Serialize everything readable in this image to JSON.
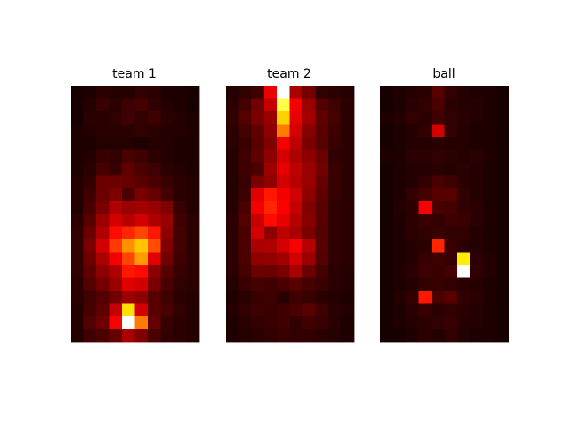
{
  "chart_data": [
    {
      "type": "heatmap",
      "title": "team 1",
      "colormap": "hot",
      "vmin": 0,
      "vmax": 1,
      "rows": 20,
      "cols": 10,
      "values": [
        [
          0.02,
          0.03,
          0.05,
          0.04,
          0.04,
          0.06,
          0.05,
          0.03,
          0.03,
          0.02
        ],
        [
          0.02,
          0.04,
          0.07,
          0.05,
          0.08,
          0.09,
          0.06,
          0.04,
          0.03,
          0.02
        ],
        [
          0.02,
          0.05,
          0.05,
          0.06,
          0.08,
          0.06,
          0.08,
          0.05,
          0.04,
          0.03
        ],
        [
          0.03,
          0.04,
          0.05,
          0.05,
          0.05,
          0.06,
          0.05,
          0.04,
          0.04,
          0.03
        ],
        [
          0.03,
          0.03,
          0.04,
          0.04,
          0.04,
          0.03,
          0.04,
          0.04,
          0.03,
          0.03
        ],
        [
          0.03,
          0.04,
          0.07,
          0.06,
          0.1,
          0.08,
          0.05,
          0.04,
          0.03,
          0.03
        ],
        [
          0.03,
          0.05,
          0.09,
          0.07,
          0.13,
          0.1,
          0.08,
          0.05,
          0.04,
          0.03
        ],
        [
          0.04,
          0.06,
          0.15,
          0.15,
          0.14,
          0.12,
          0.1,
          0.07,
          0.05,
          0.04
        ],
        [
          0.04,
          0.08,
          0.15,
          0.18,
          0.1,
          0.17,
          0.14,
          0.09,
          0.05,
          0.04
        ],
        [
          0.04,
          0.1,
          0.17,
          0.25,
          0.22,
          0.23,
          0.22,
          0.18,
          0.07,
          0.04
        ],
        [
          0.05,
          0.12,
          0.22,
          0.3,
          0.26,
          0.3,
          0.25,
          0.22,
          0.08,
          0.05
        ],
        [
          0.06,
          0.15,
          0.25,
          0.38,
          0.42,
          0.47,
          0.4,
          0.2,
          0.09,
          0.05
        ],
        [
          0.06,
          0.17,
          0.3,
          0.45,
          0.58,
          0.66,
          0.48,
          0.18,
          0.09,
          0.05
        ],
        [
          0.06,
          0.15,
          0.24,
          0.35,
          0.47,
          0.6,
          0.32,
          0.16,
          0.08,
          0.05
        ],
        [
          0.06,
          0.13,
          0.2,
          0.25,
          0.4,
          0.38,
          0.2,
          0.12,
          0.07,
          0.05
        ],
        [
          0.05,
          0.11,
          0.16,
          0.22,
          0.32,
          0.3,
          0.17,
          0.1,
          0.06,
          0.05
        ],
        [
          0.05,
          0.08,
          0.11,
          0.16,
          0.22,
          0.2,
          0.12,
          0.08,
          0.05,
          0.04
        ],
        [
          0.04,
          0.09,
          0.13,
          0.28,
          0.7,
          0.3,
          0.12,
          0.1,
          0.06,
          0.04
        ],
        [
          0.04,
          0.11,
          0.15,
          0.36,
          1.0,
          0.55,
          0.14,
          0.07,
          0.05,
          0.04
        ],
        [
          0.04,
          0.08,
          0.1,
          0.14,
          0.24,
          0.18,
          0.1,
          0.06,
          0.05,
          0.04
        ]
      ]
    },
    {
      "type": "heatmap",
      "title": "team 2",
      "colormap": "hot",
      "vmin": 0,
      "vmax": 1,
      "rows": 20,
      "cols": 10,
      "values": [
        [
          0.04,
          0.06,
          0.08,
          0.34,
          1.0,
          0.24,
          0.16,
          0.06,
          0.05,
          0.04
        ],
        [
          0.05,
          0.09,
          0.16,
          0.28,
          0.82,
          0.35,
          0.22,
          0.11,
          0.08,
          0.05
        ],
        [
          0.06,
          0.11,
          0.17,
          0.22,
          0.68,
          0.33,
          0.23,
          0.13,
          0.09,
          0.05
        ],
        [
          0.05,
          0.09,
          0.13,
          0.2,
          0.55,
          0.3,
          0.19,
          0.12,
          0.08,
          0.05
        ],
        [
          0.05,
          0.07,
          0.12,
          0.18,
          0.35,
          0.27,
          0.17,
          0.12,
          0.07,
          0.05
        ],
        [
          0.04,
          0.08,
          0.13,
          0.2,
          0.3,
          0.25,
          0.2,
          0.15,
          0.06,
          0.05
        ],
        [
          0.04,
          0.08,
          0.1,
          0.22,
          0.33,
          0.27,
          0.22,
          0.16,
          0.07,
          0.05
        ],
        [
          0.04,
          0.07,
          0.17,
          0.2,
          0.3,
          0.26,
          0.22,
          0.14,
          0.07,
          0.05
        ],
        [
          0.04,
          0.08,
          0.32,
          0.4,
          0.35,
          0.3,
          0.2,
          0.13,
          0.07,
          0.05
        ],
        [
          0.04,
          0.1,
          0.35,
          0.42,
          0.36,
          0.28,
          0.18,
          0.12,
          0.06,
          0.05
        ],
        [
          0.05,
          0.11,
          0.28,
          0.38,
          0.33,
          0.26,
          0.19,
          0.12,
          0.06,
          0.05
        ],
        [
          0.05,
          0.1,
          0.3,
          0.2,
          0.27,
          0.24,
          0.17,
          0.11,
          0.06,
          0.05
        ],
        [
          0.05,
          0.1,
          0.24,
          0.25,
          0.3,
          0.36,
          0.26,
          0.12,
          0.06,
          0.05
        ],
        [
          0.05,
          0.1,
          0.2,
          0.21,
          0.23,
          0.3,
          0.22,
          0.11,
          0.06,
          0.05
        ],
        [
          0.05,
          0.09,
          0.15,
          0.15,
          0.17,
          0.24,
          0.15,
          0.09,
          0.05,
          0.04
        ],
        [
          0.04,
          0.07,
          0.09,
          0.08,
          0.1,
          0.12,
          0.09,
          0.07,
          0.05,
          0.04
        ],
        [
          0.03,
          0.05,
          0.07,
          0.08,
          0.05,
          0.08,
          0.07,
          0.05,
          0.04,
          0.03
        ],
        [
          0.04,
          0.06,
          0.08,
          0.07,
          0.08,
          0.1,
          0.12,
          0.08,
          0.05,
          0.04
        ],
        [
          0.03,
          0.05,
          0.06,
          0.07,
          0.08,
          0.06,
          0.08,
          0.07,
          0.05,
          0.03
        ],
        [
          0.03,
          0.04,
          0.05,
          0.06,
          0.07,
          0.06,
          0.06,
          0.05,
          0.04,
          0.03
        ]
      ]
    },
    {
      "type": "heatmap",
      "title": "ball",
      "colormap": "hot",
      "vmin": 0,
      "vmax": 1,
      "rows": 20,
      "cols": 10,
      "values": [
        [
          0.02,
          0.03,
          0.04,
          0.05,
          0.12,
          0.06,
          0.04,
          0.03,
          0.03,
          0.02
        ],
        [
          0.02,
          0.03,
          0.05,
          0.06,
          0.1,
          0.05,
          0.04,
          0.04,
          0.03,
          0.02
        ],
        [
          0.03,
          0.04,
          0.06,
          0.05,
          0.08,
          0.06,
          0.05,
          0.04,
          0.03,
          0.02
        ],
        [
          0.02,
          0.03,
          0.04,
          0.06,
          0.3,
          0.06,
          0.04,
          0.03,
          0.03,
          0.02
        ],
        [
          0.02,
          0.03,
          0.04,
          0.04,
          0.05,
          0.04,
          0.04,
          0.03,
          0.03,
          0.02
        ],
        [
          0.03,
          0.03,
          0.05,
          0.05,
          0.06,
          0.05,
          0.04,
          0.05,
          0.03,
          0.02
        ],
        [
          0.02,
          0.03,
          0.04,
          0.04,
          0.05,
          0.04,
          0.05,
          0.04,
          0.03,
          0.02
        ],
        [
          0.02,
          0.03,
          0.04,
          0.06,
          0.1,
          0.08,
          0.05,
          0.04,
          0.03,
          0.02
        ],
        [
          0.02,
          0.03,
          0.06,
          0.09,
          0.12,
          0.12,
          0.06,
          0.04,
          0.03,
          0.02
        ],
        [
          0.02,
          0.04,
          0.05,
          0.36,
          0.1,
          0.09,
          0.06,
          0.05,
          0.03,
          0.02
        ],
        [
          0.02,
          0.03,
          0.05,
          0.07,
          0.06,
          0.08,
          0.07,
          0.05,
          0.03,
          0.02
        ],
        [
          0.02,
          0.03,
          0.05,
          0.06,
          0.07,
          0.06,
          0.06,
          0.04,
          0.03,
          0.02
        ],
        [
          0.02,
          0.03,
          0.04,
          0.05,
          0.42,
          0.07,
          0.05,
          0.04,
          0.03,
          0.02
        ],
        [
          0.02,
          0.03,
          0.04,
          0.07,
          0.08,
          0.07,
          0.72,
          0.05,
          0.04,
          0.02
        ],
        [
          0.02,
          0.03,
          0.05,
          0.08,
          0.07,
          0.09,
          1.0,
          0.06,
          0.04,
          0.02
        ],
        [
          0.02,
          0.03,
          0.04,
          0.06,
          0.07,
          0.06,
          0.05,
          0.04,
          0.03,
          0.02
        ],
        [
          0.02,
          0.04,
          0.06,
          0.4,
          0.1,
          0.12,
          0.06,
          0.05,
          0.03,
          0.02
        ],
        [
          0.02,
          0.03,
          0.05,
          0.07,
          0.05,
          0.06,
          0.05,
          0.04,
          0.03,
          0.02
        ],
        [
          0.02,
          0.03,
          0.04,
          0.05,
          0.06,
          0.07,
          0.04,
          0.04,
          0.03,
          0.02
        ],
        [
          0.02,
          0.02,
          0.03,
          0.05,
          0.04,
          0.06,
          0.04,
          0.03,
          0.03,
          0.02
        ]
      ]
    }
  ]
}
